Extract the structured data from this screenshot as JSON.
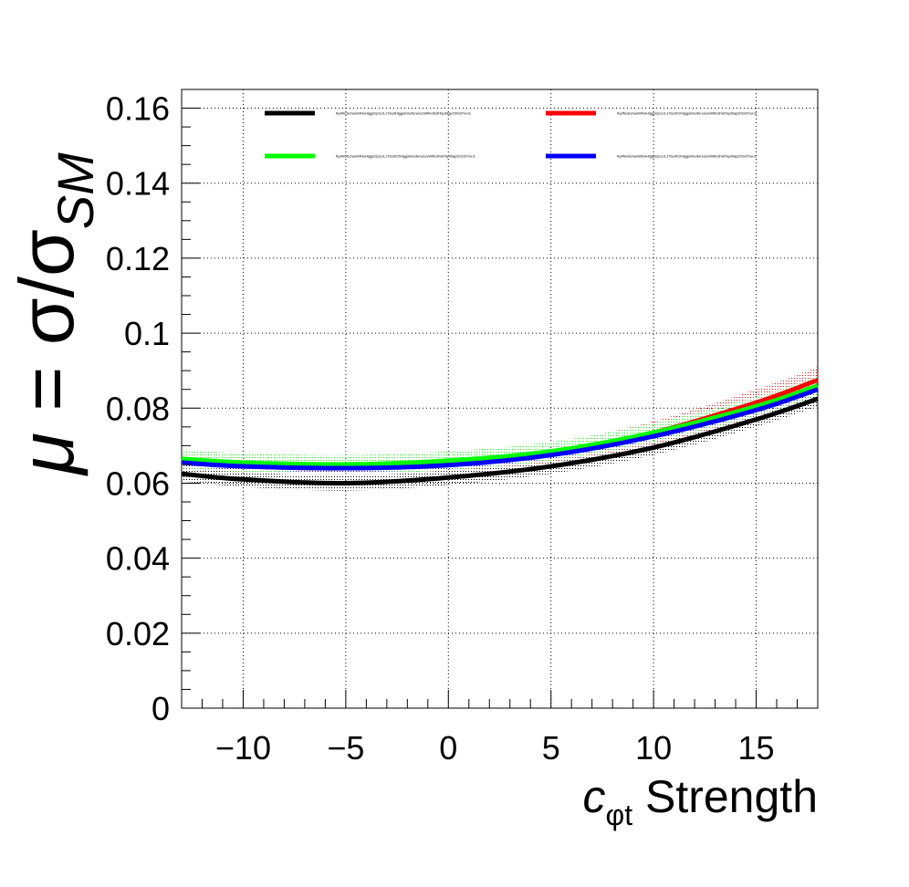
{
  "chart_data": {
    "type": "line",
    "xlim": [
      -13,
      18
    ],
    "ylim": [
      0,
      0.165
    ],
    "grid": true,
    "legend_position": "top",
    "x_ticks": [
      {
        "value": -10,
        "label": "−10"
      },
      {
        "value": -5,
        "label": "−5"
      },
      {
        "value": 0,
        "label": "0"
      },
      {
        "value": 5,
        "label": "5"
      },
      {
        "value": 10,
        "label": "10"
      },
      {
        "value": 15,
        "label": "15"
      }
    ],
    "y_ticks": [
      {
        "value": 0,
        "label": "0"
      },
      {
        "value": 0.02,
        "label": "0.02"
      },
      {
        "value": 0.04,
        "label": "0.04"
      },
      {
        "value": 0.06,
        "label": "0.06"
      },
      {
        "value": 0.08,
        "label": "0.08"
      },
      {
        "value": 0.1,
        "label": "0.1"
      },
      {
        "value": 0.12,
        "label": "0.12"
      },
      {
        "value": 0.14,
        "label": "0.14"
      },
      {
        "value": 0.16,
        "label": "0.16"
      }
    ],
    "xlabel": {
      "var": "c",
      "sub": "φt",
      "rest": " Strength"
    },
    "ylabel": {
      "mu": "μ",
      "eq": " = σ/σ",
      "sub": "SM"
    },
    "x": [
      -13,
      -10,
      -5,
      0,
      5,
      10,
      15,
      18
    ],
    "series": [
      {
        "name": "ttq4NoSchanWNoHiggs0p1UL17testHiggsInterferenceWithdim6TopMap20GSTrun1",
        "color": "#000000",
        "y": [
          0.0625,
          0.061,
          0.06,
          0.0615,
          0.0645,
          0.0695,
          0.077,
          0.0825
        ],
        "err": [
          0.002,
          0.002,
          0.002,
          0.002,
          0.002,
          0.002,
          0.002,
          0.002
        ]
      },
      {
        "name": "ttq4NoSchanWNoHiggs0p1UL17testV2HiggsInterferenceWithdim6TopMap20GSTrun3",
        "color": "#ff0000",
        "y": [
          0.0655,
          0.0645,
          0.064,
          0.065,
          0.068,
          0.0735,
          0.0815,
          0.0875
        ],
        "err": [
          0.0015,
          0.0015,
          0.0015,
          0.0015,
          0.0025,
          0.003,
          0.0035,
          0.0035
        ]
      },
      {
        "name": "ttq4NoSchanWNoHiggs0p1UL17testV2HiggsInterferenceWithdim6TopMap20GSTrun1",
        "color": "#00ff00",
        "y": [
          0.0665,
          0.0655,
          0.065,
          0.066,
          0.0685,
          0.0735,
          0.0805,
          0.086
        ],
        "err": [
          0.0025,
          0.0025,
          0.0025,
          0.0025,
          0.0025,
          0.0025,
          0.0025,
          0.0025
        ]
      },
      {
        "name": "ttq4NoSchanWNoHiggs0p1UL17testV2HiggsInterferenceWithdim6TopMap20GSTrun2",
        "color": "#0000ff",
        "y": [
          0.0655,
          0.0645,
          0.064,
          0.0648,
          0.0675,
          0.0725,
          0.0795,
          0.085
        ],
        "err": [
          0.001,
          0.001,
          0.001,
          0.001,
          0.001,
          0.001,
          0.001,
          0.001
        ]
      }
    ]
  }
}
